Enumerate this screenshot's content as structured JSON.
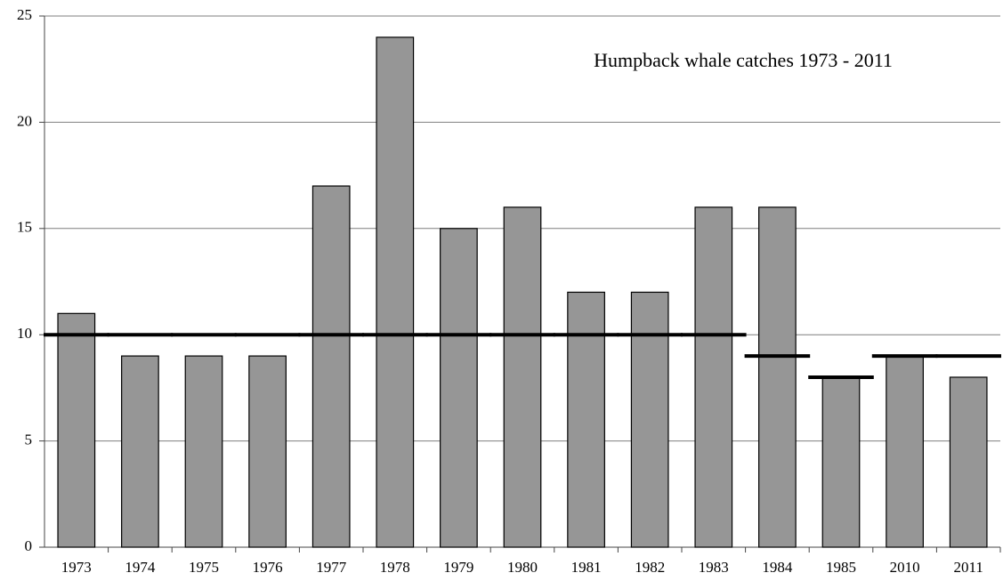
{
  "chart_data": {
    "type": "bar",
    "title": "Humpback whale catches 1973 - 2011",
    "categories": [
      "1973",
      "1974",
      "1975",
      "1976",
      "1977",
      "1978",
      "1979",
      "1980",
      "1981",
      "1982",
      "1983",
      "1984",
      "1985",
      "2010",
      "2011"
    ],
    "values": [
      11,
      9,
      9,
      9,
      17,
      24,
      15,
      16,
      12,
      12,
      16,
      16,
      8,
      9,
      8
    ],
    "color": "#969696",
    "limits": [
      10,
      10,
      10,
      10,
      10,
      10,
      10,
      10,
      10,
      10,
      10,
      9,
      8,
      9,
      9
    ],
    "limit_color": "#000000",
    "ylim": [
      0,
      25
    ],
    "yticks": [
      0,
      5,
      10,
      15,
      20,
      25
    ],
    "grid": true
  }
}
